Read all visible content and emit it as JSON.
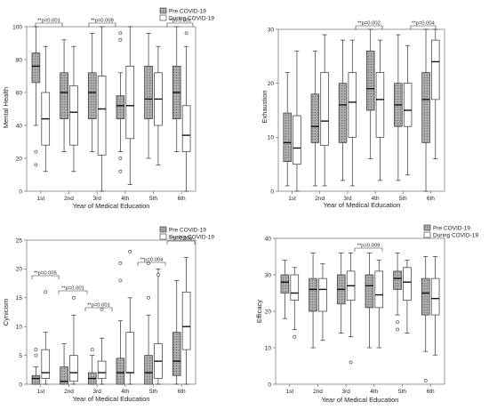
{
  "colors": {
    "pre_fill": "#9c9c9c",
    "during_fill": "#ffffff",
    "stroke": "#333333",
    "axis": "#555555"
  },
  "chart_data": [
    {
      "type": "box",
      "ylabel": "Mental Health",
      "xlabel": "Year of Medical Education",
      "ylim": [
        0,
        100
      ],
      "yticks": [
        0,
        20,
        40,
        60,
        80,
        100
      ],
      "legend": {
        "position": "top-right",
        "entries": [
          "Pre COVID-19",
          "During COVID-19"
        ]
      },
      "categories": [
        "1st",
        "2nd",
        "3rd",
        "4th",
        "5th",
        "6th"
      ],
      "series": [
        {
          "name": "Pre COVID-19",
          "boxes": [
            {
              "whislo": 40,
              "q1": 66,
              "med": 76,
              "q3": 84,
              "whishi": 100,
              "fliers": [
                24,
                16
              ]
            },
            {
              "whislo": 24,
              "q1": 44,
              "med": 60,
              "q3": 72,
              "whishi": 92,
              "fliers": []
            },
            {
              "whislo": 24,
              "q1": 44,
              "med": 60,
              "q3": 72,
              "whishi": 96,
              "fliers": []
            },
            {
              "whislo": 24,
              "q1": 44,
              "med": 52,
              "q3": 58,
              "whishi": 72,
              "fliers": [
                96,
                92,
                20,
                12
              ]
            },
            {
              "whislo": 20,
              "q1": 44,
              "med": 56,
              "q3": 76,
              "whishi": 96,
              "fliers": []
            },
            {
              "whislo": 24,
              "q1": 44,
              "med": 60,
              "q3": 76,
              "whishi": 100,
              "fliers": []
            }
          ]
        },
        {
          "name": "During COVID-19",
          "boxes": [
            {
              "whislo": 12,
              "q1": 28,
              "med": 44,
              "q3": 60,
              "whishi": 88,
              "fliers": []
            },
            {
              "whislo": 12,
              "q1": 28,
              "med": 48,
              "q3": 64,
              "whishi": 88,
              "fliers": []
            },
            {
              "whislo": 0,
              "q1": 22,
              "med": 50,
              "q3": 70,
              "whishi": 100,
              "fliers": []
            },
            {
              "whislo": 4,
              "q1": 32,
              "med": 52,
              "q3": 76,
              "whishi": 100,
              "fliers": []
            },
            {
              "whislo": 16,
              "q1": 40,
              "med": 56,
              "q3": 72,
              "whishi": 88,
              "fliers": []
            },
            {
              "whislo": 0,
              "q1": 24,
              "med": 34,
              "q3": 52,
              "whishi": 88,
              "fliers": [
                96
              ]
            }
          ]
        }
      ],
      "annotations": [
        {
          "text": "**p=0.001",
          "category": "1st"
        },
        {
          "text": "**p=0.008",
          "category": "3rd"
        },
        {
          "text": "**p=0.001",
          "category": "6th"
        }
      ]
    },
    {
      "type": "box",
      "ylabel": "Exhaustion",
      "xlabel": "Year of Medical Education",
      "ylim": [
        0,
        30
      ],
      "yticks": [
        0,
        10,
        20,
        30
      ],
      "legend": {
        "position": "top-right",
        "entries": [
          "Pre COVID-19",
          "During COVID-19"
        ]
      },
      "categories": [
        "1st",
        "2nd",
        "3rd",
        "4th",
        "5th",
        "6th"
      ],
      "series": [
        {
          "name": "Pre COVID-19",
          "boxes": [
            {
              "whislo": 1,
              "q1": 5.5,
              "med": 9,
              "q3": 14.5,
              "whishi": 22,
              "fliers": []
            },
            {
              "whislo": 1,
              "q1": 9,
              "med": 12,
              "q3": 18,
              "whishi": 26,
              "fliers": []
            },
            {
              "whislo": 2,
              "q1": 9,
              "med": 16,
              "q3": 20,
              "whishi": 28,
              "fliers": []
            },
            {
              "whislo": 6,
              "q1": 15,
              "med": 19,
              "q3": 26,
              "whishi": 30,
              "fliers": []
            },
            {
              "whislo": 2,
              "q1": 12,
              "med": 16,
              "q3": 20,
              "whishi": 29,
              "fliers": []
            },
            {
              "whislo": 0,
              "q1": 9,
              "med": 17,
              "q3": 22,
              "whishi": 30,
              "fliers": []
            }
          ]
        },
        {
          "name": "During COVID-19",
          "boxes": [
            {
              "whislo": 0,
              "q1": 5,
              "med": 8,
              "q3": 14,
              "whishi": 26,
              "fliers": []
            },
            {
              "whislo": 1,
              "q1": 8.5,
              "med": 13,
              "q3": 22,
              "whishi": 29,
              "fliers": []
            },
            {
              "whislo": 1,
              "q1": 10,
              "med": 16.5,
              "q3": 22,
              "whishi": 28,
              "fliers": []
            },
            {
              "whislo": 2,
              "q1": 10,
              "med": 17,
              "q3": 22,
              "whishi": 28,
              "fliers": []
            },
            {
              "whislo": 3,
              "q1": 12,
              "med": 15,
              "q3": 20,
              "whishi": 27,
              "fliers": []
            },
            {
              "whislo": 6,
              "q1": 17,
              "med": 24,
              "q3": 28,
              "whishi": 30,
              "fliers": []
            }
          ]
        }
      ],
      "annotations": [
        {
          "text": "**p=0.002",
          "category": "4th"
        },
        {
          "text": "**p=0.004",
          "category": "6th"
        }
      ]
    },
    {
      "type": "box",
      "ylabel": "Cynicism",
      "xlabel": "Year of Medical Education",
      "ylim": [
        0,
        25
      ],
      "yticks": [
        0,
        5,
        10,
        15,
        20,
        25
      ],
      "legend": {
        "position": "top-right",
        "entries": [
          "Pre COVID-19",
          "During COVID-19"
        ]
      },
      "categories": [
        "1st",
        "2nd",
        "3rd",
        "4th",
        "5th",
        "6th"
      ],
      "series": [
        {
          "name": "Pre COVID-19",
          "boxes": [
            {
              "whislo": 0,
              "q1": 0,
              "med": 1,
              "q3": 1.5,
              "whishi": 3,
              "fliers": [
                6,
                5
              ]
            },
            {
              "whislo": 0,
              "q1": 0,
              "med": 0.5,
              "q3": 3,
              "whishi": 7,
              "fliers": []
            },
            {
              "whislo": 0,
              "q1": 0,
              "med": 1,
              "q3": 2,
              "whishi": 5,
              "fliers": [
                6
              ]
            },
            {
              "whislo": 0,
              "q1": 0,
              "med": 2,
              "q3": 4.5,
              "whishi": 11,
              "fliers": [
                21,
                18
              ]
            },
            {
              "whislo": 0,
              "q1": 0,
              "med": 2,
              "q3": 5,
              "whishi": 12,
              "fliers": [
                21,
                15
              ]
            },
            {
              "whislo": 0,
              "q1": 1.5,
              "med": 4,
              "q3": 9,
              "whishi": 18,
              "fliers": []
            }
          ]
        },
        {
          "name": "During COVID-19",
          "boxes": [
            {
              "whislo": 0,
              "q1": 1,
              "med": 2,
              "q3": 6,
              "whishi": 9,
              "fliers": [
                16
              ]
            },
            {
              "whislo": 0,
              "q1": 0.5,
              "med": 2,
              "q3": 5,
              "whishi": 12,
              "fliers": [
                15
              ]
            },
            {
              "whislo": 0,
              "q1": 1,
              "med": 2,
              "q3": 4,
              "whishi": 8,
              "fliers": [
                13
              ]
            },
            {
              "whislo": 0,
              "q1": 2,
              "med": 2,
              "q3": 9,
              "whishi": 15,
              "fliers": [
                23
              ]
            },
            {
              "whislo": 0,
              "q1": 1,
              "med": 4,
              "q3": 7,
              "whishi": 20,
              "fliers": [
                19
              ]
            },
            {
              "whislo": 0,
              "q1": 6,
              "med": 10,
              "q3": 16,
              "whishi": 22,
              "fliers": []
            }
          ]
        }
      ],
      "annotations": [
        {
          "text": "**p=0.005",
          "category": "1st"
        },
        {
          "text": "**p=0.001",
          "category": "2nd"
        },
        {
          "text": "**p=0.001",
          "category": "3rd"
        },
        {
          "text": "**p=0.004",
          "category": "5th"
        },
        {
          "text": "**p=0.005",
          "category": "6th"
        }
      ]
    },
    {
      "type": "box",
      "ylabel": "Efficacy",
      "xlabel": "Year of Medical Education",
      "ylim": [
        0,
        40
      ],
      "yticks": [
        0,
        10,
        20,
        30,
        40
      ],
      "legend": {
        "position": "top-right",
        "entries": [
          "Pre COVID-19",
          "During COVID-19"
        ]
      },
      "categories": [
        "1st",
        "2nd",
        "3rd",
        "4th",
        "5th",
        "6th"
      ],
      "series": [
        {
          "name": "Pre COVID-19",
          "boxes": [
            {
              "whislo": 18,
              "q1": 25,
              "med": 28,
              "q3": 30,
              "whishi": 34,
              "fliers": []
            },
            {
              "whislo": 10,
              "q1": 20,
              "med": 26,
              "q3": 29,
              "whishi": 36,
              "fliers": []
            },
            {
              "whislo": 14,
              "q1": 22,
              "med": 26,
              "q3": 30,
              "whishi": 36,
              "fliers": []
            },
            {
              "whislo": 10,
              "q1": 21,
              "med": 27,
              "q3": 30,
              "whishi": 36,
              "fliers": []
            },
            {
              "whislo": 19,
              "q1": 26,
              "med": 29,
              "q3": 31,
              "whishi": 36,
              "fliers": [
                17,
                15
              ]
            },
            {
              "whislo": 9,
              "q1": 19,
              "med": 25,
              "q3": 29,
              "whishi": 35,
              "fliers": [
                1
              ]
            }
          ]
        },
        {
          "name": "During COVID-19",
          "boxes": [
            {
              "whislo": 15,
              "q1": 23,
              "med": 25,
              "q3": 30,
              "whishi": 32,
              "fliers": [
                13
              ]
            },
            {
              "whislo": 12,
              "q1": 20,
              "med": 26,
              "q3": 29,
              "whishi": 33,
              "fliers": []
            },
            {
              "whislo": 13,
              "q1": 23,
              "med": 27,
              "q3": 31,
              "whishi": 36,
              "fliers": [
                6
              ]
            },
            {
              "whislo": 10,
              "q1": 21,
              "med": 24.5,
              "q3": 31,
              "whishi": 34,
              "fliers": []
            },
            {
              "whislo": 14,
              "q1": 23,
              "med": 28,
              "q3": 32,
              "whishi": 34,
              "fliers": []
            },
            {
              "whislo": 8,
              "q1": 19,
              "med": 23.5,
              "q3": 29,
              "whishi": 35,
              "fliers": []
            }
          ]
        }
      ],
      "annotations": [
        {
          "text": "**p=0.009",
          "category": "4th"
        }
      ]
    }
  ]
}
